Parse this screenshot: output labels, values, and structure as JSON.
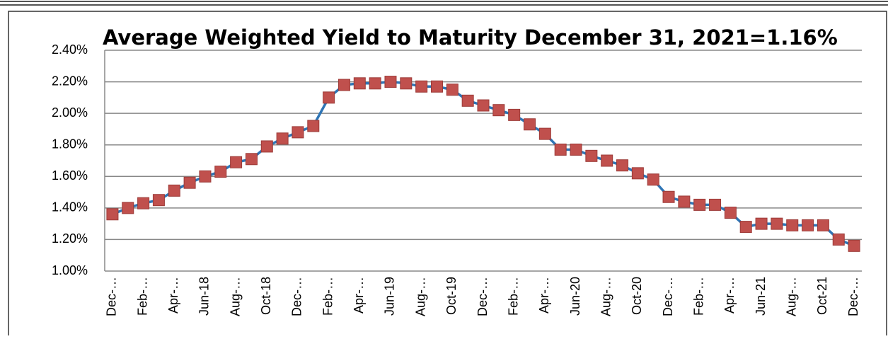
{
  "chart_data": {
    "type": "line",
    "title": "Average Weighted Yield to Maturity December 31, 2021=1.16%",
    "categories": [
      "Dec-…",
      null,
      "Feb-…",
      null,
      "Apr-…",
      null,
      "Jun-18",
      null,
      "Aug-…",
      null,
      "Oct-18",
      null,
      "Dec-…",
      null,
      "Feb-…",
      null,
      "Apr-…",
      null,
      "Jun-19",
      null,
      "Aug-…",
      null,
      "Oct-19",
      null,
      "Dec-…",
      null,
      "Feb-…",
      null,
      "Apr-…",
      null,
      "Jun-20",
      null,
      "Aug-…",
      null,
      "Oct-20",
      null,
      "Dec-…",
      null,
      "Feb-…",
      null,
      "Apr-…",
      null,
      "Jun-21",
      null,
      "Aug-…",
      null,
      "Oct-21",
      null,
      "Dec-…"
    ],
    "series": [
      {
        "color": "#2e75b6",
        "marker_color": "#c0504d",
        "values": [
          1.36,
          1.4,
          1.43,
          1.45,
          1.51,
          1.56,
          1.6,
          1.63,
          1.69,
          1.71,
          1.79,
          1.84,
          1.88,
          1.92,
          2.1,
          2.18,
          2.19,
          2.19,
          2.2,
          2.19,
          2.17,
          2.17,
          2.15,
          2.08,
          2.05,
          2.02,
          1.99,
          1.93,
          1.87,
          1.77,
          1.77,
          1.73,
          1.7,
          1.67,
          1.62,
          1.58,
          1.47,
          1.44,
          1.42,
          1.42,
          1.37,
          1.28,
          1.3,
          1.3,
          1.29,
          1.29,
          1.29,
          1.2,
          1.16
        ]
      }
    ],
    "ylim": [
      1.0,
      2.4
    ],
    "yticks": [
      {
        "value": 1.0,
        "label": "1.00%"
      },
      {
        "value": 1.2,
        "label": "1.20%"
      },
      {
        "value": 1.4,
        "label": "1.40%"
      },
      {
        "value": 1.6,
        "label": "1.60%"
      },
      {
        "value": 1.8,
        "label": "1.80%"
      },
      {
        "value": 2.0,
        "label": "2.00%"
      },
      {
        "value": 2.2,
        "label": "2.20%"
      },
      {
        "value": 2.4,
        "label": "2.40%"
      }
    ],
    "grid": true
  }
}
